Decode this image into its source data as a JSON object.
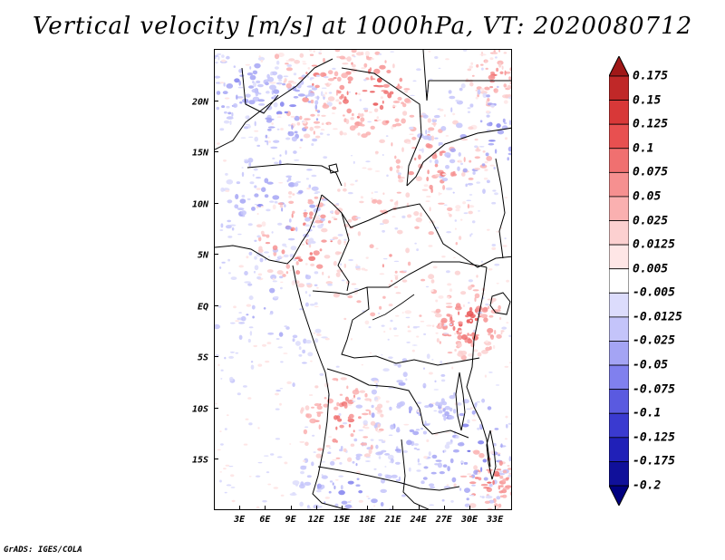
{
  "title": "Vertical velocity [m/s] at 1000hPa, VT: 2020080712",
  "map": {
    "lat_labels": [
      "20N",
      "15N",
      "10N",
      "5N",
      "EQ",
      "5S",
      "10S",
      "15S"
    ],
    "lat_values": [
      20,
      15,
      10,
      5,
      0,
      -5,
      -10,
      -15
    ],
    "lon_labels": [
      "3E",
      "6E",
      "9E",
      "12E",
      "15E",
      "18E",
      "21E",
      "24E",
      "27E",
      "30E",
      "33E"
    ],
    "lon_values": [
      3,
      6,
      9,
      12,
      15,
      18,
      21,
      24,
      27,
      30,
      33
    ],
    "lon_range": [
      0,
      35
    ],
    "lat_range": [
      -20,
      25
    ]
  },
  "colorbar": {
    "levels": [
      "0.175",
      "0.15",
      "0.125",
      "0.1",
      "0.075",
      "0.05",
      "0.025",
      "0.0125",
      "0.005",
      "-0.005",
      "-0.0125",
      "-0.025",
      "-0.05",
      "-0.075",
      "-0.1",
      "-0.125",
      "-0.175",
      "-0.2"
    ],
    "colors": [
      "#a01818",
      "#c02828",
      "#d83838",
      "#e85050",
      "#f07070",
      "#f69090",
      "#fab0b0",
      "#fcd0d0",
      "#fee6e6",
      "#ffffff",
      "#dcdcfc",
      "#c4c4fa",
      "#a4a4f4",
      "#8080ee",
      "#5a5ae0",
      "#3a3ad0",
      "#2020b8",
      "#10109a",
      "#000080"
    ]
  },
  "footer": "GrADS: IGES/COLA"
}
